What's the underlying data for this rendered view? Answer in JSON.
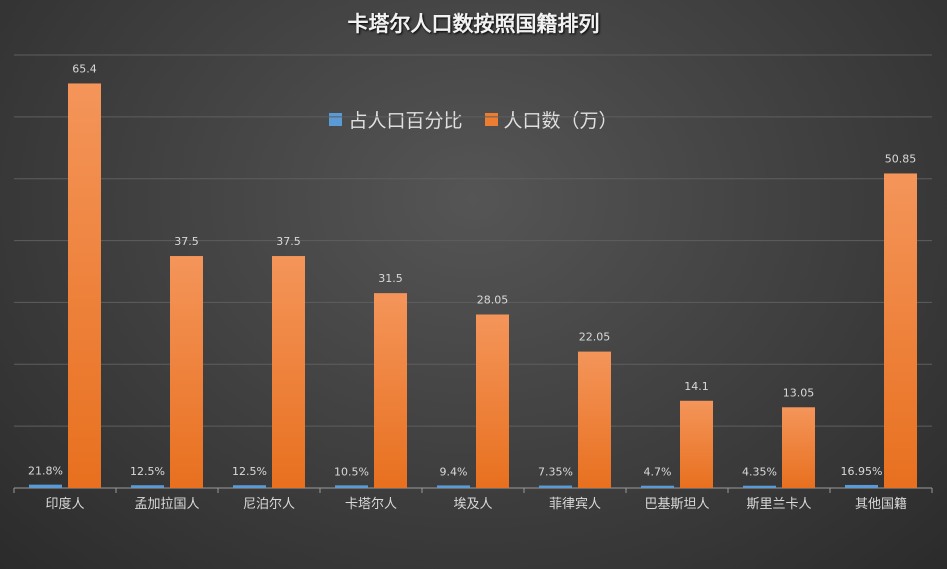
{
  "chart_data": {
    "type": "bar",
    "title": "卡塔尔人口数按照国籍排列",
    "categories": [
      "印度人",
      "孟加拉国人",
      "尼泊尔人",
      "卡塔尔人",
      "埃及人",
      "菲律宾人",
      "巴基斯坦人",
      "斯里兰卡人",
      "其他国籍"
    ],
    "series": [
      {
        "name": "占人口百分比",
        "color": "#5b9bd5",
        "unit": "%",
        "values": [
          21.8,
          12.5,
          12.5,
          10.5,
          9.4,
          7.35,
          4.7,
          4.35,
          16.95
        ]
      },
      {
        "name": "人口数（万）",
        "color": "#ed7d31",
        "values": [
          65.4,
          37.5,
          37.5,
          31.5,
          28.05,
          22.05,
          14.1,
          13.05,
          50.85
        ]
      }
    ],
    "ylim": [
      0,
      70
    ],
    "y_gridline_step": 10,
    "y_tick_labels_shown": false,
    "grid": true,
    "legend_position": "top",
    "data_labels": true
  }
}
